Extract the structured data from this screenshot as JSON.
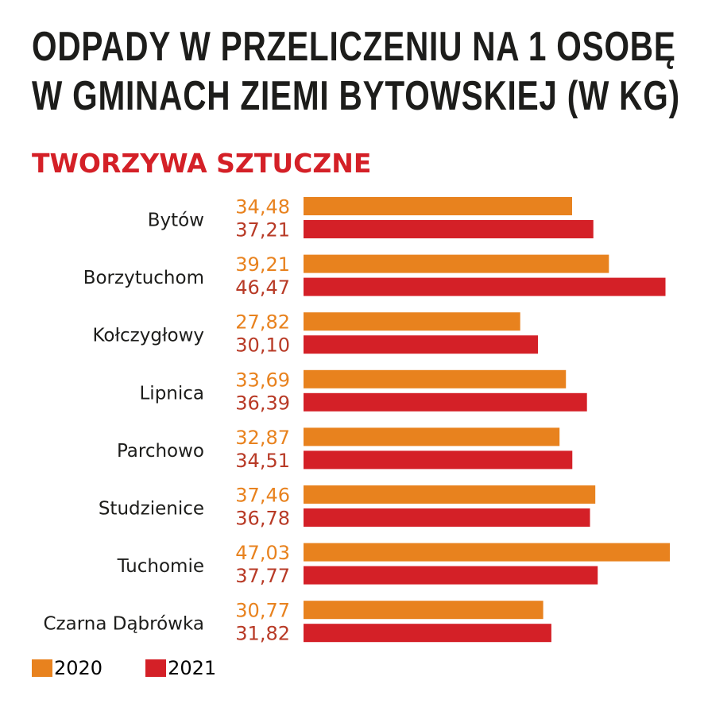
{
  "title": {
    "line1": "ODPADY W PRZELICZENIU NA 1 OSOBĘ",
    "line2": "W GMINACH ZIEMI BYTOWSKIEJ (W KG)"
  },
  "colors": {
    "series2020": "#e8821e",
    "series2021": "#d42027"
  },
  "chart_data": {
    "type": "bar",
    "orientation": "horizontal",
    "title": "ODPADY W PRZELICZENIU NA 1 OSOBĘ W GMINACH ZIEMI BYTOWSKIEJ (W KG)",
    "subtitle": "TWORZYWA SZTUCZNE",
    "categories": [
      "Bytów",
      "Borzytuchom",
      "Kołczygłowy",
      "Lipnica",
      "Parchowo",
      "Studzienice",
      "Tuchomie",
      "Czarna Dąbrówka"
    ],
    "series": [
      {
        "name": "2020",
        "values": [
          34.48,
          39.21,
          27.82,
          33.69,
          32.87,
          37.46,
          47.03,
          30.77
        ],
        "labels": [
          "34,48",
          "39,21",
          "27,82",
          "33,69",
          "32,87",
          "37,46",
          "47,03",
          "30,77"
        ]
      },
      {
        "name": "2021",
        "values": [
          37.21,
          46.47,
          30.1,
          36.39,
          34.51,
          36.78,
          37.77,
          31.82
        ],
        "labels": [
          "37,21",
          "46,47",
          "30,10",
          "36,39",
          "34,51",
          "36,78",
          "37,77",
          "31,82"
        ]
      }
    ],
    "xlim": [
      0,
      47.03
    ],
    "legend": "bottom-left",
    "grid": false
  }
}
